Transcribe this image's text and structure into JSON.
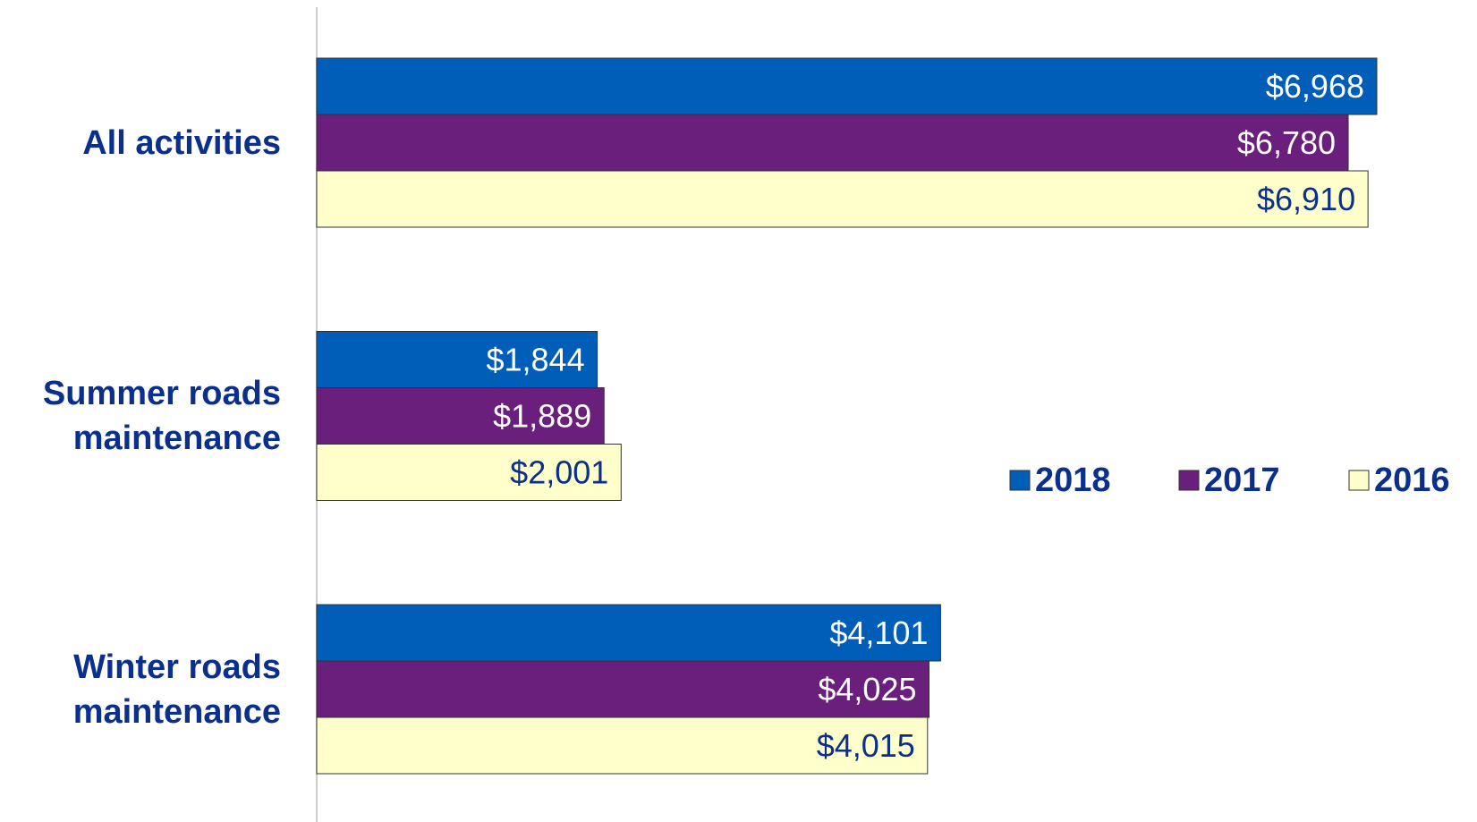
{
  "chart_data": {
    "type": "bar",
    "orientation": "horizontal",
    "categories": [
      "All activities",
      "Summer roads maintenance",
      "Winter roads maintenance"
    ],
    "series": [
      {
        "name": "2018",
        "color": "#005eb8",
        "values": [
          6968,
          1844,
          4101
        ],
        "value_labels": [
          "$6,968",
          "$1,844",
          "$4,101"
        ]
      },
      {
        "name": "2017",
        "color": "#6b1f7c",
        "values": [
          6780,
          1889,
          4025
        ],
        "value_labels": [
          "$6,780",
          "$1,889",
          "$4,025"
        ]
      },
      {
        "name": "2016",
        "color": "#ffffcc",
        "values": [
          6910,
          2001,
          4015
        ],
        "value_labels": [
          "$6,910",
          "$2,001",
          "$4,015"
        ]
      }
    ],
    "legend": "right"
  }
}
